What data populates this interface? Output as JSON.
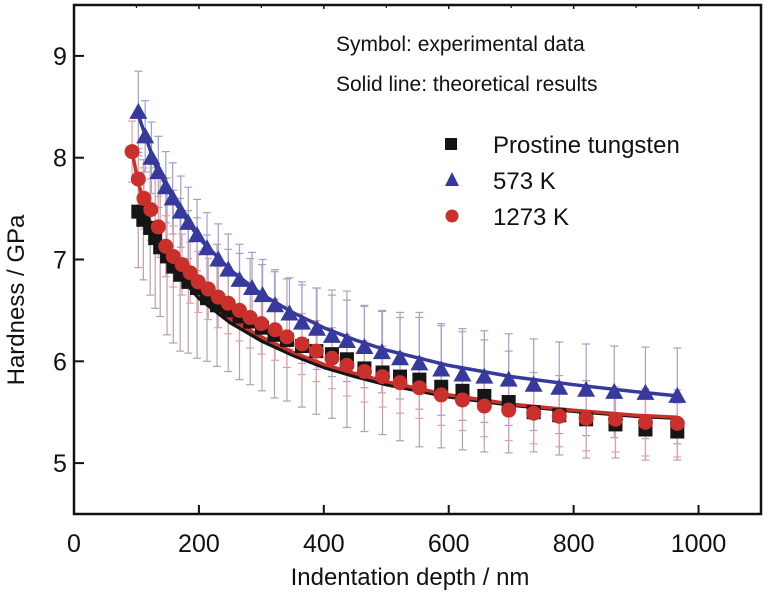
{
  "chart_data": {
    "type": "scatter",
    "title": "",
    "xlabel": "Indentation depth / nm",
    "ylabel": "Hardness / GPa",
    "xlim": [
      0,
      1100
    ],
    "ylim": [
      4.5,
      9.5
    ],
    "xticks": [
      0,
      200,
      400,
      600,
      800,
      1000
    ],
    "xtick_labels": [
      "0",
      "200",
      "400",
      "600",
      "800",
      "1000"
    ],
    "yticks": [
      5,
      6,
      7,
      8,
      9
    ],
    "ytick_labels": [
      "5",
      "6",
      "7",
      "8",
      "9"
    ],
    "x_minor_ticks": [
      100,
      300,
      500,
      700,
      900
    ],
    "grid": false,
    "annotations": [
      "Symbol: experimental data",
      "Solid line: theoretical results"
    ],
    "legend_position": "top-right",
    "series": [
      {
        "name": "Prostine tungsten",
        "marker": "square",
        "color": "#151515",
        "x": [
          103,
          111,
          122,
          130,
          138,
          149,
          159,
          170,
          183,
          197,
          213,
          229,
          247,
          265,
          282,
          301,
          321,
          341,
          365,
          388,
          413,
          437,
          465,
          494,
          522,
          553,
          588,
          622,
          657,
          696,
          736,
          777,
          820,
          867,
          915,
          966
        ],
        "y": [
          7.47,
          7.39,
          7.31,
          7.21,
          7.12,
          7.03,
          6.93,
          6.85,
          6.78,
          6.72,
          6.62,
          6.55,
          6.5,
          6.44,
          6.39,
          6.33,
          6.26,
          6.21,
          6.15,
          6.1,
          6.07,
          6.02,
          5.93,
          5.89,
          5.85,
          5.82,
          5.75,
          5.71,
          5.66,
          5.6,
          5.5,
          5.47,
          5.43,
          5.38,
          5.33,
          5.31
        ],
        "error": [
          0.55,
          0.59,
          0.66,
          0.69,
          0.68,
          0.77,
          0.75,
          0.75,
          0.7,
          0.69,
          0.62,
          0.6,
          0.6,
          0.62,
          0.62,
          0.62,
          0.62,
          0.6,
          0.6,
          0.62,
          0.63,
          0.67,
          0.62,
          0.61,
          0.63,
          0.66,
          0.6,
          0.58,
          0.55,
          0.5,
          0.39,
          0.39,
          0.38,
          0.33,
          0.3,
          0.28
        ],
        "theory": {
          "x": [
            103,
            130,
            160,
            200,
            250,
            300,
            350,
            400,
            450,
            500,
            600,
            700,
            800,
            900,
            966
          ],
          "y": [
            7.45,
            7.16,
            6.9,
            6.62,
            6.38,
            6.2,
            6.06,
            5.94,
            5.85,
            5.77,
            5.65,
            5.57,
            5.51,
            5.46,
            5.44
          ]
        }
      },
      {
        "name": "573 K",
        "marker": "triangle",
        "color": "#353a9c",
        "x": [
          103,
          114,
          124,
          135,
          147,
          158,
          171,
          183,
          197,
          213,
          231,
          247,
          265,
          285,
          302,
          322,
          345,
          365,
          389,
          413,
          437,
          465,
          493,
          522,
          553,
          588,
          622,
          657,
          696,
          736,
          777,
          820,
          865,
          915,
          966
        ],
        "y": [
          8.45,
          8.21,
          8.0,
          7.86,
          7.71,
          7.6,
          7.47,
          7.36,
          7.24,
          7.11,
          7.0,
          6.9,
          6.8,
          6.72,
          6.65,
          6.55,
          6.47,
          6.38,
          6.32,
          6.25,
          6.2,
          6.14,
          6.09,
          6.03,
          5.98,
          5.92,
          5.87,
          5.85,
          5.82,
          5.77,
          5.74,
          5.72,
          5.7,
          5.69,
          5.66
        ],
        "error": [
          0.4,
          0.35,
          0.35,
          0.35,
          0.35,
          0.35,
          0.35,
          0.35,
          0.35,
          0.35,
          0.35,
          0.35,
          0.35,
          0.35,
          0.35,
          0.35,
          0.35,
          0.4,
          0.4,
          0.4,
          0.4,
          0.4,
          0.4,
          0.4,
          0.45,
          0.45,
          0.45,
          0.45,
          0.45,
          0.45,
          0.45,
          0.45,
          0.45,
          0.45,
          0.47
        ],
        "theory": {
          "x": [
            103,
            130,
            160,
            200,
            250,
            300,
            350,
            400,
            450,
            500,
            600,
            700,
            800,
            900,
            966
          ],
          "y": [
            8.42,
            7.93,
            7.58,
            7.21,
            6.9,
            6.66,
            6.48,
            6.33,
            6.21,
            6.11,
            5.96,
            5.85,
            5.77,
            5.7,
            5.66
          ]
        }
      },
      {
        "name": "1273 K",
        "marker": "circle",
        "color": "#c9302b",
        "x": [
          93,
          103,
          112,
          123,
          135,
          147,
          159,
          173,
          186,
          199,
          215,
          231,
          247,
          265,
          282,
          300,
          322,
          341,
          365,
          388,
          413,
          437,
          465,
          494,
          522,
          553,
          588,
          622,
          657,
          696,
          736,
          777,
          820,
          867,
          915,
          966
        ],
        "y": [
          8.06,
          7.79,
          7.6,
          7.49,
          7.32,
          7.13,
          7.03,
          6.95,
          6.87,
          6.78,
          6.71,
          6.63,
          6.57,
          6.5,
          6.43,
          6.37,
          6.31,
          6.24,
          6.17,
          6.1,
          6.03,
          5.96,
          5.9,
          5.85,
          5.79,
          5.74,
          5.67,
          5.62,
          5.56,
          5.52,
          5.49,
          5.46,
          5.44,
          5.43,
          5.4,
          5.39
        ],
        "error": [
          0.3,
          0.3,
          0.3,
          0.3,
          0.3,
          0.3,
          0.3,
          0.3,
          0.3,
          0.3,
          0.3,
          0.3,
          0.3,
          0.3,
          0.3,
          0.3,
          0.3,
          0.3,
          0.3,
          0.3,
          0.3,
          0.3,
          0.3,
          0.3,
          0.3,
          0.3,
          0.3,
          0.3,
          0.3,
          0.3,
          0.3,
          0.3,
          0.32,
          0.32,
          0.33,
          0.33
        ],
        "theory": {
          "x": [
            93,
            103,
            130,
            160,
            200,
            250,
            300,
            350,
            400,
            450,
            500,
            600,
            700,
            800,
            900,
            966
          ],
          "y": [
            8.06,
            7.75,
            7.2,
            6.93,
            6.66,
            6.42,
            6.24,
            6.09,
            5.97,
            5.88,
            5.8,
            5.67,
            5.58,
            5.52,
            5.47,
            5.45
          ]
        }
      }
    ]
  }
}
